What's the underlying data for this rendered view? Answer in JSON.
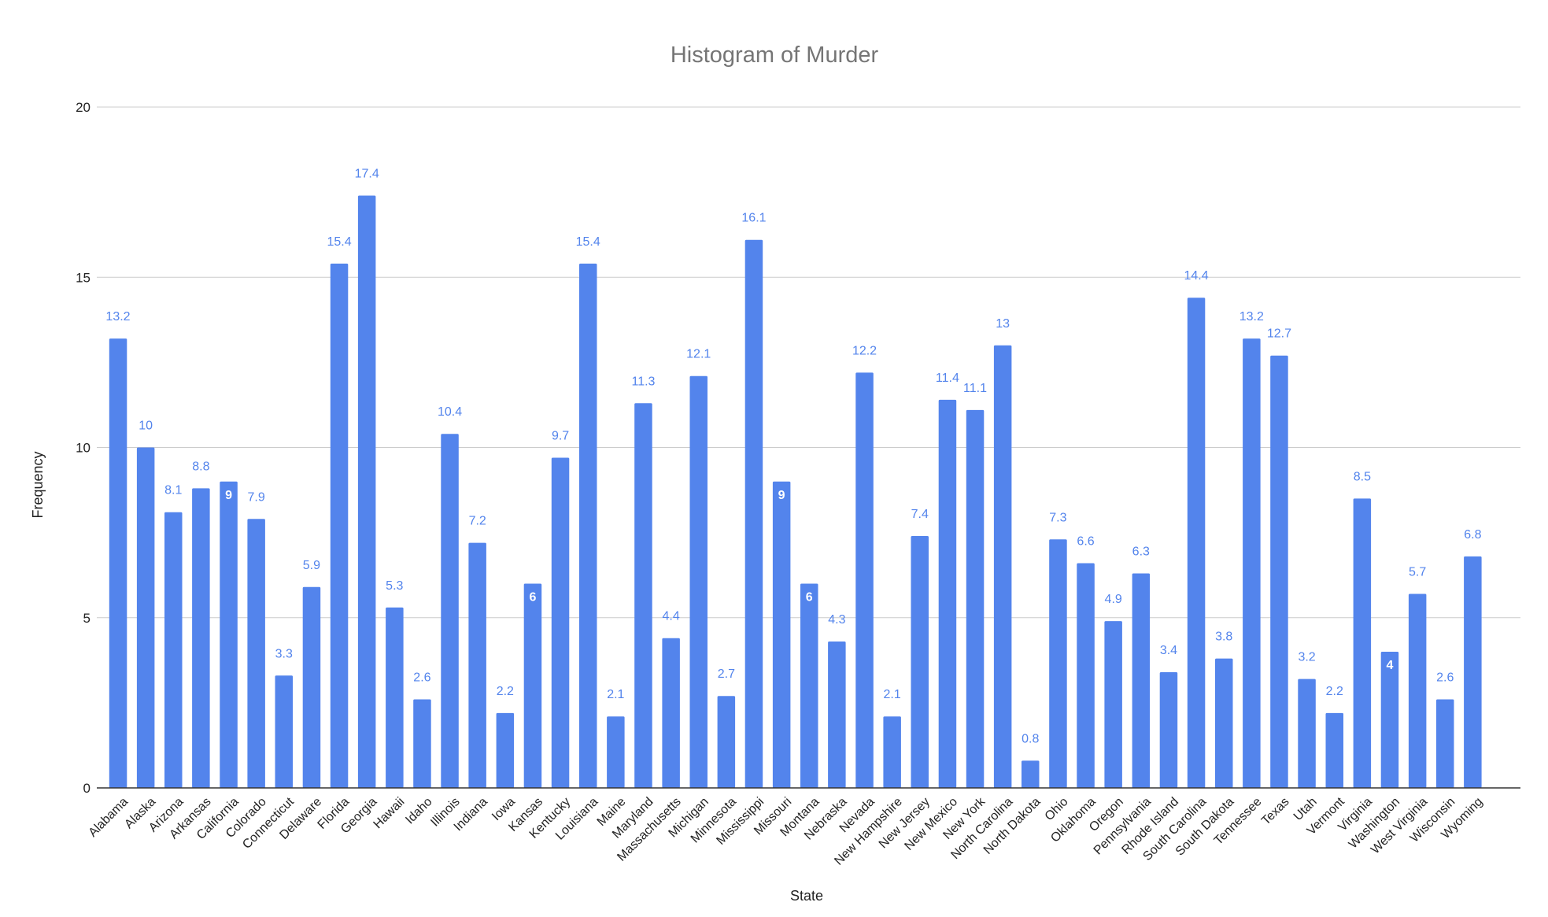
{
  "chart_data": {
    "type": "bar",
    "title": "Histogram of Murder",
    "xlabel": "State",
    "ylabel": "Frequency",
    "ylim": [
      0,
      20
    ],
    "yticks": [
      0,
      5,
      10,
      15,
      20
    ],
    "grid": true,
    "bar_color": "#5384ec",
    "label_color": "#5384ec",
    "inside_label_color": "#ffffff",
    "categories": [
      "Alabama",
      "Alaska",
      "Arizona",
      "Arkansas",
      "California",
      "Colorado",
      "Connecticut",
      "Delaware",
      "Florida",
      "Georgia",
      "Hawaii",
      "Idaho",
      "Illinois",
      "Indiana",
      "Iowa",
      "Kansas",
      "Kentucky",
      "Louisiana",
      "Maine",
      "Maryland",
      "Massachusetts",
      "Michigan",
      "Minnesota",
      "Mississippi",
      "Missouri",
      "Montana",
      "Nebraska",
      "Nevada",
      "New Hampshire",
      "New Jersey",
      "New Mexico",
      "New York",
      "North Carolina",
      "North Dakota",
      "Ohio",
      "Oklahoma",
      "Oregon",
      "Pennsylvania",
      "Rhode Island",
      "South Carolina",
      "South Dakota",
      "Tennessee",
      "Texas",
      "Utah",
      "Vermont",
      "Virginia",
      "Washington",
      "West Virginia",
      "Wisconsin",
      "Wyoming"
    ],
    "values": [
      13.2,
      10,
      8.1,
      8.8,
      9,
      7.9,
      3.3,
      5.9,
      15.4,
      17.4,
      5.3,
      2.6,
      10.4,
      7.2,
      2.2,
      6,
      9.7,
      15.4,
      2.1,
      11.3,
      4.4,
      12.1,
      2.7,
      16.1,
      9,
      6,
      4.3,
      12.2,
      2.1,
      7.4,
      11.4,
      11.1,
      13,
      0.8,
      7.3,
      6.6,
      4.9,
      6.3,
      3.4,
      14.4,
      3.8,
      13.2,
      12.7,
      3.2,
      2.2,
      8.5,
      4,
      5.7,
      2.6,
      6.8
    ],
    "labels": [
      "13.2",
      "10",
      "8.1",
      "8.8",
      "9",
      "7.9",
      "3.3",
      "5.9",
      "15.4",
      "17.4",
      "5.3",
      "2.6",
      "10.4",
      "7.2",
      "2.2",
      "6",
      "9.7",
      "15.4",
      "2.1",
      "11.3",
      "4.4",
      "12.1",
      "2.7",
      "16.1",
      "9",
      "6",
      "4.3",
      "12.2",
      "2.1",
      "7.4",
      "11.4",
      "11.1",
      "13",
      "0.8",
      "7.3",
      "6.6",
      "4.9",
      "6.3",
      "3.4",
      "14.4",
      "3.8",
      "13.2",
      "12.7",
      "3.2",
      "2.2",
      "8.5",
      "4",
      "5.7",
      "2.6",
      "6.8"
    ],
    "label_inside": [
      false,
      false,
      false,
      false,
      true,
      false,
      false,
      false,
      false,
      false,
      false,
      false,
      false,
      false,
      false,
      true,
      false,
      false,
      false,
      false,
      false,
      false,
      false,
      false,
      true,
      true,
      false,
      false,
      false,
      false,
      false,
      false,
      false,
      false,
      false,
      false,
      false,
      false,
      false,
      false,
      false,
      false,
      false,
      false,
      false,
      false,
      true,
      false,
      false,
      false
    ]
  }
}
